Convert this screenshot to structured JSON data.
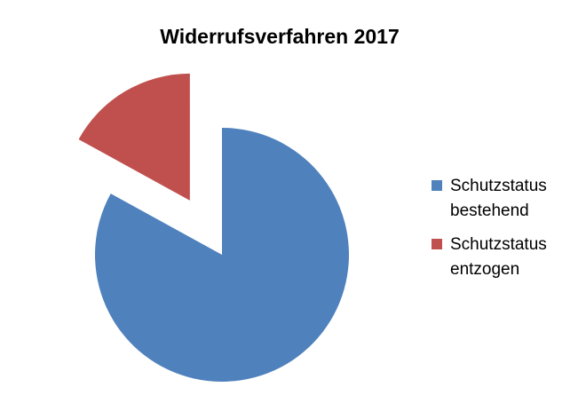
{
  "chart_data": {
    "type": "pie",
    "title": "Widerrufsverfahren 2017",
    "categories": [
      "Schutzstatus bestehend",
      "Schutzstatus entzogen"
    ],
    "values": [
      83,
      17
    ],
    "colors": [
      "#4f81bd",
      "#c0504d"
    ],
    "legend": "right"
  }
}
